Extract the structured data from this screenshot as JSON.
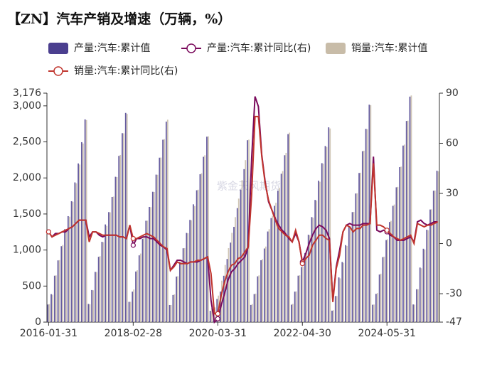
{
  "chart_data": {
    "type": "bar-line",
    "title": "【ZN】汽车产销及增速（万辆，%）",
    "watermark": "紫金天风期货",
    "categories": [
      "2016-01-31",
      null,
      null,
      null,
      null,
      null,
      null,
      null,
      null,
      null,
      null,
      null,
      null,
      null,
      null,
      null,
      null,
      null,
      null,
      null,
      null,
      null,
      null,
      null,
      null,
      "2018-02-28",
      null,
      null,
      null,
      null,
      null,
      null,
      null,
      null,
      null,
      null,
      null,
      null,
      null,
      null,
      null,
      null,
      null,
      null,
      null,
      null,
      null,
      null,
      null,
      null,
      "2020-03-31",
      null,
      null,
      null,
      null,
      null,
      null,
      null,
      null,
      null,
      null,
      null,
      null,
      null,
      null,
      null,
      null,
      null,
      null,
      null,
      null,
      null,
      null,
      null,
      null,
      "2022-04-30",
      null,
      null,
      null,
      null,
      null,
      null,
      null,
      null,
      null,
      null,
      null,
      null,
      null,
      null,
      null,
      null,
      null,
      null,
      null,
      null,
      null,
      null,
      null,
      null,
      "2024-05-31",
      null,
      null,
      null,
      null,
      null,
      null,
      null,
      null,
      null,
      null,
      null,
      null,
      null,
      null,
      null
    ],
    "series": [
      {
        "name": "产量:汽车:累计值",
        "type": "bar",
        "color": "#4b3f8f",
        "values": [
          244,
          388,
          644,
          856,
          1053,
          1289,
          1470,
          1677,
          1938,
          2201,
          2496,
          2812,
          252,
          445,
          697,
          906,
          1114,
          1355,
          1526,
          1736,
          2016,
          2306,
          2621,
          2902,
          281,
          423,
          702,
          926,
          1155,
          1406,
          1598,
          1808,
          2046,
          2281,
          2530,
          2781,
          237,
          376,
          632,
          836,
          1024,
          1237,
          1418,
          1634,
          1829,
          2051,
          2293,
          2572,
          157,
          178,
          321,
          424,
          643,
          876,
          1103,
          1321,
          1581,
          1837,
          2122,
          2523,
          238,
          389,
          635,
          858,
          1021,
          1257,
          1443,
          1613,
          1824,
          2058,
          2315,
          2608,
          242,
          423,
          644,
          765,
          958,
          1212,
          1457,
          1695,
          1962,
          2205,
          2443,
          2702,
          159,
          362,
          620,
          834,
          1068,
          1325,
          1526,
          1784,
          2069,
          2371,
          2681,
          3016,
          241,
          392,
          660,
          901,
          1138,
          1389,
          1613,
          1870,
          2150,
          2449,
          2790,
          3128,
          245,
          456,
          757,
          1018,
          1282,
          1562,
          1823,
          2100
        ]
      },
      {
        "name": "产量:汽车:累计同比(右)",
        "type": "line",
        "axis": "y2",
        "color": "#7a0a5c",
        "values": [
          7,
          4,
          6,
          6,
          7,
          7,
          9,
          10,
          12,
          14,
          14,
          14,
          4,
          7,
          7,
          5,
          4,
          5,
          5,
          5,
          5,
          4,
          4,
          3,
          11,
          -1,
          3,
          3,
          4,
          4,
          3,
          3,
          1,
          -1,
          -2,
          -4,
          -16,
          -13,
          -10,
          -10,
          -11,
          -12,
          -11,
          -11,
          -11,
          -10,
          -9,
          -8,
          -34,
          -47,
          -45,
          -37,
          -30,
          -22,
          -17,
          -15,
          -12,
          -10,
          -8,
          -2,
          51,
          88,
          82,
          53,
          37,
          25,
          20,
          15,
          11,
          8,
          6,
          3,
          1,
          6,
          1,
          -11,
          -6,
          0,
          5,
          9,
          11,
          10,
          8,
          3,
          -34,
          -14,
          -4,
          7,
          11,
          12,
          11,
          11,
          11,
          12,
          12,
          12,
          52,
          8,
          7,
          8,
          7,
          5,
          4,
          2,
          2,
          2,
          3,
          4,
          1,
          13,
          14,
          12,
          11,
          12,
          13,
          13
        ]
      },
      {
        "name": "销量:汽车:累计值",
        "type": "bar",
        "color": "#c8bca8",
        "values": [
          250,
          380,
          648,
          860,
          1070,
          1283,
          1462,
          1669,
          1926,
          2185,
          2478,
          2803,
          247,
          441,
          695,
          915,
          1108,
          1335,
          1523,
          1741,
          2012,
          2318,
          2619,
          2888,
          281,
          453,
          719,
          951,
          1180,
          1407,
          1595,
          1805,
          2044,
          2283,
          2538,
          2808,
          237,
          385,
          637,
          835,
          1026,
          1232,
          1413,
          1610,
          1837,
          2065,
          2314,
          2577,
          194,
          204,
          368,
          575,
          793,
          1026,
          1238,
          1456,
          1713,
          1970,
          2247,
          2531,
          250,
          395,
          648,
          873,
          1048,
          1289,
          1475,
          1655,
          1862,
          2095,
          2348,
          2628,
          253,
          426,
          650,
          769,
          955,
          1206,
          1448,
          1686,
          1947,
          2197,
          2429,
          2686,
          165,
          362,
          607,
          822,
          1057,
          1324,
          1528,
          1787,
          2072,
          2378,
          2676,
          3009,
          244,
          403,
          672,
          908,
          1149,
          1405,
          1631,
          1876,
          2157,
          2462,
          2794,
          3144,
          242,
          456,
          747,
          1006,
          1274,
          1565,
          1826,
          2091
        ]
      },
      {
        "name": "销量:汽车:累计同比(右)",
        "type": "line",
        "axis": "y2",
        "color": "#c0342d",
        "values": [
          7,
          4,
          5,
          6,
          7,
          8,
          9,
          10,
          12,
          14,
          14,
          14,
          1,
          7,
          7,
          6,
          5,
          5,
          5,
          5,
          5,
          4,
          4,
          3,
          11,
          3,
          3,
          4,
          5,
          6,
          5,
          4,
          2,
          0,
          -2,
          -3,
          -16,
          -14,
          -11,
          -12,
          -12,
          -12,
          -11,
          -11,
          -10,
          -10,
          -9,
          -8,
          -18,
          -42,
          -42,
          -31,
          -23,
          -17,
          -13,
          -12,
          -9,
          -8,
          -5,
          -2,
          29,
          76,
          76,
          52,
          36,
          26,
          20,
          14,
          9,
          7,
          5,
          4,
          1,
          8,
          1,
          -12,
          -9,
          -7,
          -1,
          2,
          5,
          5,
          3,
          2,
          -35,
          -15,
          -7,
          7,
          11,
          10,
          7,
          9,
          9,
          11,
          11,
          12,
          48,
          11,
          11,
          10,
          8,
          6,
          4,
          3,
          2,
          3,
          4,
          5,
          0,
          12,
          11,
          10,
          11,
          11,
          12,
          13
        ]
      }
    ],
    "ylim": [
      0,
      3176
    ],
    "yticks": [
      0,
      500,
      {
        "value": 1000,
        "label": "1,000"
      },
      {
        "value": 1500,
        "label": "1,500"
      },
      {
        "value": 2000,
        "label": "2,000"
      },
      {
        "value": 2500,
        "label": "2,500"
      },
      {
        "value": 3000,
        "label": "3,000"
      },
      {
        "value": 3176,
        "label": "3,176"
      }
    ],
    "y2lim": [
      -47,
      90
    ],
    "y2ticks": [
      -47,
      -30,
      0,
      30,
      60,
      90
    ],
    "grid": false
  }
}
